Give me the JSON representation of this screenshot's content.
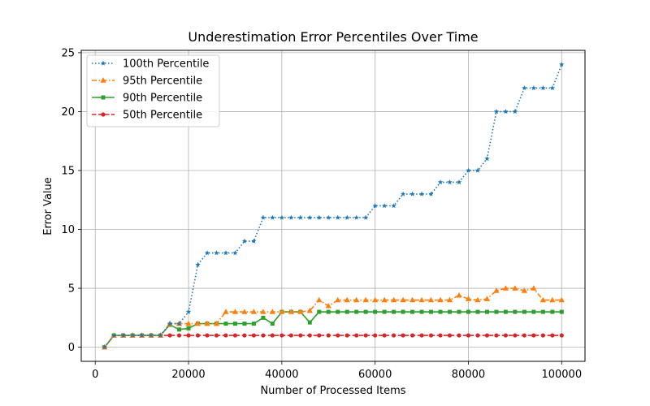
{
  "chart_data": {
    "type": "line",
    "title": "Underestimation Error Percentiles Over Time",
    "xlabel": "Number of Processed Items",
    "ylabel": "Error Value",
    "xlim": [
      -3000,
      105000
    ],
    "ylim": [
      -1.2,
      25.2
    ],
    "xticks": [
      0,
      20000,
      40000,
      60000,
      80000,
      100000
    ],
    "xtick_labels": [
      "0",
      "20000",
      "40000",
      "60000",
      "80000",
      "100000"
    ],
    "yticks": [
      0,
      5,
      10,
      15,
      20,
      25
    ],
    "ytick_labels": [
      "0",
      "5",
      "10",
      "15",
      "20",
      "25"
    ],
    "grid": true,
    "legend_position": "top-left",
    "x": [
      2000,
      4000,
      6000,
      8000,
      10000,
      12000,
      14000,
      16000,
      18000,
      20000,
      22000,
      24000,
      26000,
      28000,
      30000,
      32000,
      34000,
      36000,
      38000,
      40000,
      42000,
      44000,
      46000,
      48000,
      50000,
      52000,
      54000,
      56000,
      58000,
      60000,
      62000,
      64000,
      66000,
      68000,
      70000,
      72000,
      74000,
      76000,
      78000,
      80000,
      82000,
      84000,
      86000,
      88000,
      90000,
      92000,
      94000,
      96000,
      98000,
      100000
    ],
    "series": [
      {
        "name": "100th Percentile",
        "color": "#1f77b4",
        "linestyle": "dotted",
        "marker": "star",
        "values": [
          0,
          1,
          1,
          1,
          1,
          1,
          1,
          2,
          2,
          3,
          7,
          8,
          8,
          8,
          8,
          9,
          9,
          11,
          11,
          11,
          11,
          11,
          11,
          11,
          11,
          11,
          11,
          11,
          11,
          12,
          12,
          12,
          13,
          13,
          13,
          13,
          14,
          14,
          14,
          15,
          15,
          16,
          20,
          20,
          20,
          22,
          22,
          22,
          22,
          24
        ]
      },
      {
        "name": "95th Percentile",
        "color": "#ff7f0e",
        "linestyle": "dashdot",
        "marker": "triangle",
        "values": [
          0,
          1,
          1,
          1,
          1,
          1,
          1,
          2,
          2,
          2,
          2,
          2,
          2,
          3,
          3,
          3,
          3,
          3,
          3,
          3,
          3,
          3,
          3.1,
          4,
          3.5,
          4,
          4,
          4,
          4,
          4,
          4,
          4,
          4,
          4,
          4,
          4,
          4,
          4,
          4.4,
          4.1,
          4,
          4.1,
          4.8,
          5,
          5,
          4.8,
          5,
          4,
          4,
          4
        ]
      },
      {
        "name": "90th Percentile",
        "color": "#2ca02c",
        "linestyle": "solid",
        "marker": "square",
        "values": [
          0,
          1,
          1,
          1,
          1,
          1,
          1,
          1.9,
          1.5,
          1.6,
          2,
          2,
          2,
          2,
          2,
          2,
          2,
          2.5,
          2,
          3,
          3,
          3,
          2.1,
          3,
          3,
          3,
          3,
          3,
          3,
          3,
          3,
          3,
          3,
          3,
          3,
          3,
          3,
          3,
          3,
          3,
          3,
          3,
          3,
          3,
          3,
          3,
          3,
          3,
          3,
          3
        ]
      },
      {
        "name": "50th Percentile",
        "color": "#d62728",
        "linestyle": "dashed",
        "marker": "circle",
        "values": [
          0,
          1,
          1,
          1,
          1,
          1,
          1,
          1,
          1,
          1,
          1,
          1,
          1,
          1,
          1,
          1,
          1,
          1,
          1,
          1,
          1,
          1,
          1,
          1,
          1,
          1,
          1,
          1,
          1,
          1,
          1,
          1,
          1,
          1,
          1,
          1,
          1,
          1,
          1,
          1,
          1,
          1,
          1,
          1,
          1,
          1,
          1,
          1,
          1,
          1
        ]
      }
    ]
  }
}
